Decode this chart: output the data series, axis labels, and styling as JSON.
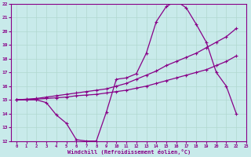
{
  "xlabel": "Windchill (Refroidissement éolien,°C)",
  "bg_color": "#c8eaea",
  "grid_color": "#b0d8d0",
  "line_color": "#880088",
  "xmin": 0,
  "xmax": 22,
  "ymin": 12,
  "ymax": 22,
  "xticks": [
    0,
    1,
    2,
    3,
    4,
    5,
    6,
    7,
    8,
    9,
    10,
    11,
    12,
    13,
    14,
    15,
    16,
    17,
    18,
    19,
    20,
    21,
    22,
    23
  ],
  "yticks": [
    12,
    13,
    14,
    15,
    16,
    17,
    18,
    19,
    20,
    21,
    22
  ],
  "line1_x": [
    0,
    1,
    2,
    3,
    4,
    5,
    6,
    7,
    8,
    9,
    10,
    11,
    12,
    13,
    14,
    15,
    16,
    17,
    18,
    19,
    20,
    21,
    22
  ],
  "line1_y": [
    15,
    15,
    15,
    14.8,
    13.9,
    13.3,
    12.1,
    12.0,
    12.0,
    14.1,
    16.5,
    16.6,
    16.9,
    18.4,
    20.7,
    21.8,
    22.2,
    21.7,
    20.5,
    19.2,
    17.0,
    16.0,
    14.0
  ],
  "line2_x": [
    0,
    1,
    2,
    3,
    4,
    5,
    6,
    7,
    8,
    9,
    10,
    11,
    12,
    13,
    14,
    15,
    16,
    17,
    18,
    19,
    20,
    21,
    22
  ],
  "line2_y": [
    15,
    15.05,
    15.1,
    15.2,
    15.3,
    15.4,
    15.5,
    15.6,
    15.7,
    15.8,
    16.0,
    16.2,
    16.5,
    16.8,
    17.1,
    17.5,
    17.8,
    18.1,
    18.4,
    18.8,
    19.2,
    19.6,
    20.2
  ],
  "line3_x": [
    0,
    1,
    2,
    3,
    4,
    5,
    6,
    7,
    8,
    9,
    10,
    11,
    12,
    13,
    14,
    15,
    16,
    17,
    18,
    19,
    20,
    21,
    22
  ],
  "line3_y": [
    15,
    15.02,
    15.05,
    15.1,
    15.15,
    15.2,
    15.3,
    15.35,
    15.4,
    15.5,
    15.6,
    15.7,
    15.85,
    16.0,
    16.2,
    16.4,
    16.6,
    16.8,
    17.0,
    17.2,
    17.5,
    17.8,
    18.2
  ]
}
